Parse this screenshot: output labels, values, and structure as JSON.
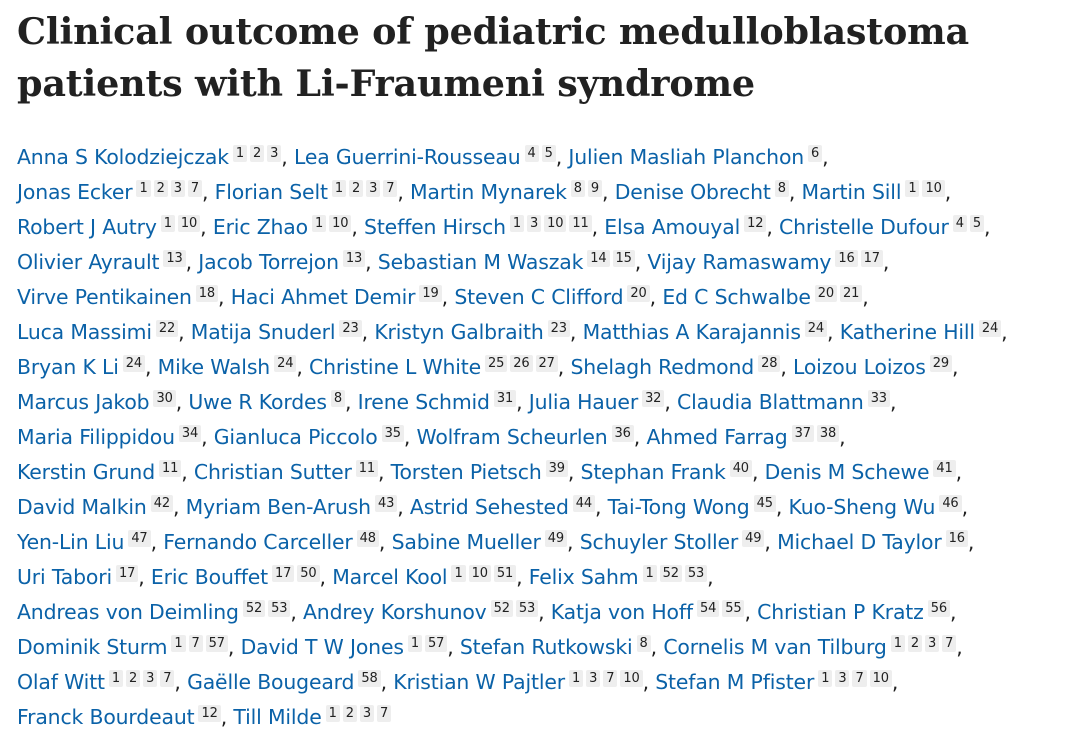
{
  "title": "Clinical outcome of pediatric medulloblastoma patients with Li-Fraumeni syndrome",
  "author_lines": [
    [
      {
        "name": "Anna S Kolodziejczak",
        "affiliations": [
          "1",
          "2",
          "3"
        ]
      },
      {
        "name": "Lea Guerrini-Rousseau",
        "affiliations": [
          "4",
          "5"
        ]
      },
      {
        "name": "Julien Masliah Planchon",
        "affiliations": [
          "6"
        ]
      }
    ],
    [
      {
        "name": "Jonas Ecker",
        "affiliations": [
          "1",
          "2",
          "3",
          "7"
        ]
      },
      {
        "name": "Florian Selt",
        "affiliations": [
          "1",
          "2",
          "3",
          "7"
        ]
      },
      {
        "name": "Martin Mynarek",
        "affiliations": [
          "8",
          "9"
        ]
      },
      {
        "name": "Denise Obrecht",
        "affiliations": [
          "8"
        ]
      },
      {
        "name": "Martin Sill",
        "affiliations": [
          "1",
          "10"
        ]
      }
    ],
    [
      {
        "name": "Robert J Autry",
        "affiliations": [
          "1",
          "10"
        ]
      },
      {
        "name": "Eric Zhao",
        "affiliations": [
          "1",
          "10"
        ]
      },
      {
        "name": "Steffen Hirsch",
        "affiliations": [
          "1",
          "3",
          "10",
          "11"
        ]
      },
      {
        "name": "Elsa Amouyal",
        "affiliations": [
          "12"
        ]
      },
      {
        "name": "Christelle Dufour",
        "affiliations": [
          "4",
          "5"
        ]
      }
    ],
    [
      {
        "name": "Olivier Ayrault",
        "affiliations": [
          "13"
        ]
      },
      {
        "name": "Jacob Torrejon",
        "affiliations": [
          "13"
        ]
      },
      {
        "name": "Sebastian M Waszak",
        "affiliations": [
          "14",
          "15"
        ]
      },
      {
        "name": "Vijay Ramaswamy",
        "affiliations": [
          "16",
          "17"
        ]
      }
    ],
    [
      {
        "name": "Virve Pentikainen",
        "affiliations": [
          "18"
        ]
      },
      {
        "name": "Haci Ahmet Demir",
        "affiliations": [
          "19"
        ]
      },
      {
        "name": "Steven C Clifford",
        "affiliations": [
          "20"
        ]
      },
      {
        "name": "Ed C Schwalbe",
        "affiliations": [
          "20",
          "21"
        ]
      }
    ],
    [
      {
        "name": "Luca Massimi",
        "affiliations": [
          "22"
        ]
      },
      {
        "name": "Matija Snuderl",
        "affiliations": [
          "23"
        ]
      },
      {
        "name": "Kristyn Galbraith",
        "affiliations": [
          "23"
        ]
      },
      {
        "name": "Matthias A Karajannis",
        "affiliations": [
          "24"
        ]
      },
      {
        "name": "Katherine Hill",
        "affiliations": [
          "24"
        ]
      }
    ],
    [
      {
        "name": "Bryan K Li",
        "affiliations": [
          "24"
        ]
      },
      {
        "name": "Mike Walsh",
        "affiliations": [
          "24"
        ]
      },
      {
        "name": "Christine L White",
        "affiliations": [
          "25",
          "26",
          "27"
        ]
      },
      {
        "name": "Shelagh Redmond",
        "affiliations": [
          "28"
        ]
      },
      {
        "name": "Loizou Loizos",
        "affiliations": [
          "29"
        ]
      }
    ],
    [
      {
        "name": "Marcus Jakob",
        "affiliations": [
          "30"
        ]
      },
      {
        "name": "Uwe R Kordes",
        "affiliations": [
          "8"
        ]
      },
      {
        "name": "Irene Schmid",
        "affiliations": [
          "31"
        ]
      },
      {
        "name": "Julia Hauer",
        "affiliations": [
          "32"
        ]
      },
      {
        "name": "Claudia Blattmann",
        "affiliations": [
          "33"
        ]
      }
    ],
    [
      {
        "name": "Maria Filippidou",
        "affiliations": [
          "34"
        ]
      },
      {
        "name": "Gianluca Piccolo",
        "affiliations": [
          "35"
        ]
      },
      {
        "name": "Wolfram Scheurlen",
        "affiliations": [
          "36"
        ]
      },
      {
        "name": "Ahmed Farrag",
        "affiliations": [
          "37",
          "38"
        ]
      }
    ],
    [
      {
        "name": "Kerstin Grund",
        "affiliations": [
          "11"
        ]
      },
      {
        "name": "Christian Sutter",
        "affiliations": [
          "11"
        ]
      },
      {
        "name": "Torsten Pietsch",
        "affiliations": [
          "39"
        ]
      },
      {
        "name": "Stephan Frank",
        "affiliations": [
          "40"
        ]
      },
      {
        "name": "Denis M Schewe",
        "affiliations": [
          "41"
        ]
      }
    ],
    [
      {
        "name": "David Malkin",
        "affiliations": [
          "42"
        ]
      },
      {
        "name": "Myriam Ben-Arush",
        "affiliations": [
          "43"
        ]
      },
      {
        "name": "Astrid Sehested",
        "affiliations": [
          "44"
        ]
      },
      {
        "name": "Tai-Tong Wong",
        "affiliations": [
          "45"
        ]
      },
      {
        "name": "Kuo-Sheng Wu",
        "affiliations": [
          "46"
        ]
      }
    ],
    [
      {
        "name": "Yen-Lin Liu",
        "affiliations": [
          "47"
        ]
      },
      {
        "name": "Fernando Carceller",
        "affiliations": [
          "48"
        ]
      },
      {
        "name": "Sabine Mueller",
        "affiliations": [
          "49"
        ]
      },
      {
        "name": "Schuyler Stoller",
        "affiliations": [
          "49"
        ]
      },
      {
        "name": "Michael D Taylor",
        "affiliations": [
          "16"
        ]
      }
    ],
    [
      {
        "name": "Uri Tabori",
        "affiliations": [
          "17"
        ]
      },
      {
        "name": "Eric Bouffet",
        "affiliations": [
          "17",
          "50"
        ]
      },
      {
        "name": "Marcel Kool",
        "affiliations": [
          "1",
          "10",
          "51"
        ]
      },
      {
        "name": "Felix Sahm",
        "affiliations": [
          "1",
          "52",
          "53"
        ]
      }
    ],
    [
      {
        "name": "Andreas von Deimling",
        "affiliations": [
          "52",
          "53"
        ]
      },
      {
        "name": "Andrey Korshunov",
        "affiliations": [
          "52",
          "53"
        ]
      },
      {
        "name": "Katja von Hoff",
        "affiliations": [
          "54",
          "55"
        ]
      },
      {
        "name": "Christian P Kratz",
        "affiliations": [
          "56"
        ]
      }
    ],
    [
      {
        "name": "Dominik Sturm",
        "affiliations": [
          "1",
          "7",
          "57"
        ]
      },
      {
        "name": "David T W Jones",
        "affiliations": [
          "1",
          "57"
        ]
      },
      {
        "name": "Stefan Rutkowski",
        "affiliations": [
          "8"
        ]
      },
      {
        "name": "Cornelis M van Tilburg",
        "affiliations": [
          "1",
          "2",
          "3",
          "7"
        ]
      }
    ],
    [
      {
        "name": "Olaf Witt",
        "affiliations": [
          "1",
          "2",
          "3",
          "7"
        ]
      },
      {
        "name": "Gaëlle Bougeard",
        "affiliations": [
          "58"
        ]
      },
      {
        "name": "Kristian W Pajtler",
        "affiliations": [
          "1",
          "3",
          "7",
          "10"
        ]
      },
      {
        "name": "Stefan M Pfister",
        "affiliations": [
          "1",
          "3",
          "7",
          "10"
        ]
      }
    ],
    [
      {
        "name": "Franck Bourdeaut",
        "affiliations": [
          "12"
        ]
      },
      {
        "name": "Till Milde",
        "affiliations": [
          "1",
          "2",
          "3",
          "7"
        ]
      }
    ]
  ]
}
